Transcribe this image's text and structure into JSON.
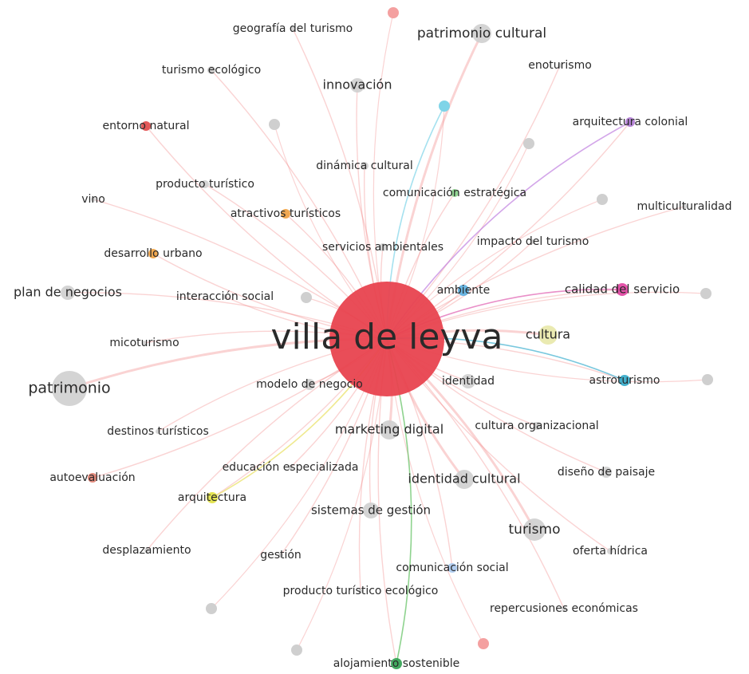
{
  "nodes": [
    {
      "label": "villa de leyva"
    },
    {
      "label": "geografía del turismo"
    },
    {
      "label": "patrimonio cultural"
    },
    {
      "label": "turismo ecológico"
    },
    {
      "label": "innovación"
    },
    {
      "label": "enoturismo"
    },
    {
      "label": "entorno natural"
    },
    {
      "label": "arquitectura colonial"
    },
    {
      "label": "dinámica cultural"
    },
    {
      "label": "producto turístico"
    },
    {
      "label": "comunicación estratégica"
    },
    {
      "label": "vino"
    },
    {
      "label": "multiculturalidad"
    },
    {
      "label": "atractivos turísticos"
    },
    {
      "label": "servicios ambientales"
    },
    {
      "label": "impacto del turismo"
    },
    {
      "label": "desarrollo urbano"
    },
    {
      "label": "plan de negocios"
    },
    {
      "label": "interacción social"
    },
    {
      "label": "ambiente"
    },
    {
      "label": "calidad del servicio"
    },
    {
      "label": "micoturismo"
    },
    {
      "label": "cultura"
    },
    {
      "label": "patrimonio"
    },
    {
      "label": "modelo de negocio"
    },
    {
      "label": "identidad"
    },
    {
      "label": "astroturismo"
    },
    {
      "label": "destinos turísticos"
    },
    {
      "label": "marketing digital"
    },
    {
      "label": "cultura organizacional"
    },
    {
      "label": "educación especializada"
    },
    {
      "label": "diseño de paisaje"
    },
    {
      "label": "autoevaluación"
    },
    {
      "label": "identidad cultural"
    },
    {
      "label": "arquitectura"
    },
    {
      "label": "sistemas de gestión"
    },
    {
      "label": "turismo"
    },
    {
      "label": "desplazamiento"
    },
    {
      "label": "gestión"
    },
    {
      "label": "oferta hídrica"
    },
    {
      "label": "comunicación social"
    },
    {
      "label": "producto turístico ecológico"
    },
    {
      "label": "repercusiones económicas"
    },
    {
      "label": "alojamiento sostenible"
    }
  ]
}
